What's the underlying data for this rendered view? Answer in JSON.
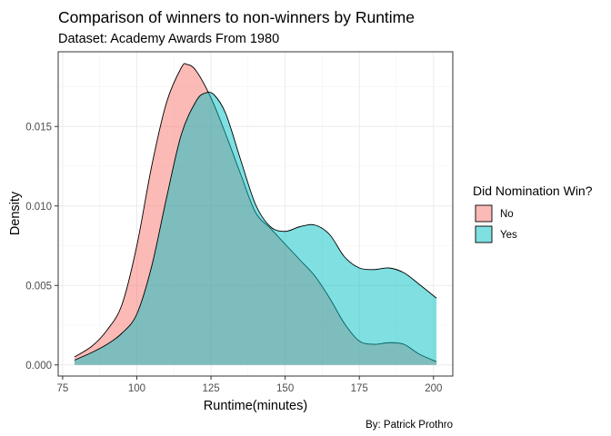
{
  "chart_data": {
    "type": "area",
    "title": "Comparison of winners to non-winners by Runtime",
    "subtitle": "Dataset: Academy Awards From 1980",
    "xlabel": "Runtime(minutes)",
    "ylabel": "Density",
    "caption": "By: Patrick Prothro",
    "xlim": [
      73.5,
      206.5
    ],
    "ylim": [
      -0.0007,
      0.0197
    ],
    "x_ticks": [
      75,
      100,
      125,
      150,
      175,
      200
    ],
    "x_tick_labels": [
      "75",
      "100",
      "125",
      "150",
      "175",
      "200"
    ],
    "y_ticks": [
      0.0,
      0.005,
      0.01,
      0.015
    ],
    "y_tick_labels": [
      "0.000",
      "0.005",
      "0.010",
      "0.015"
    ],
    "grid": true,
    "legend": {
      "title": "Did Nomination Win?",
      "placement": "right"
    },
    "series": [
      {
        "name": "No",
        "color": "#F8766D",
        "x": [
          79,
          85,
          90,
          95,
          100,
          105,
          110,
          115,
          117,
          120,
          125,
          130,
          135,
          140,
          145,
          150,
          155,
          160,
          165,
          170,
          175,
          180,
          185,
          190,
          195,
          201
        ],
        "y": [
          0.0005,
          0.0012,
          0.0022,
          0.0038,
          0.0075,
          0.0125,
          0.0165,
          0.0187,
          0.0189,
          0.0185,
          0.0168,
          0.0145,
          0.012,
          0.0096,
          0.0086,
          0.0076,
          0.0066,
          0.0056,
          0.0042,
          0.0026,
          0.0015,
          0.0013,
          0.0014,
          0.0013,
          0.0007,
          0.0002
        ]
      },
      {
        "name": "Yes",
        "color": "#00BFC4",
        "x": [
          79,
          85,
          90,
          95,
          100,
          105,
          110,
          115,
          120,
          123,
          126,
          130,
          135,
          140,
          145,
          150,
          155,
          160,
          165,
          170,
          175,
          180,
          185,
          190,
          195,
          201
        ],
        "y": [
          0.0003,
          0.0008,
          0.0013,
          0.002,
          0.0032,
          0.0062,
          0.0105,
          0.0145,
          0.0166,
          0.0171,
          0.017,
          0.0158,
          0.0129,
          0.0101,
          0.0087,
          0.0084,
          0.0087,
          0.0088,
          0.0082,
          0.0068,
          0.0061,
          0.006,
          0.0061,
          0.0058,
          0.0051,
          0.0042
        ]
      }
    ]
  }
}
